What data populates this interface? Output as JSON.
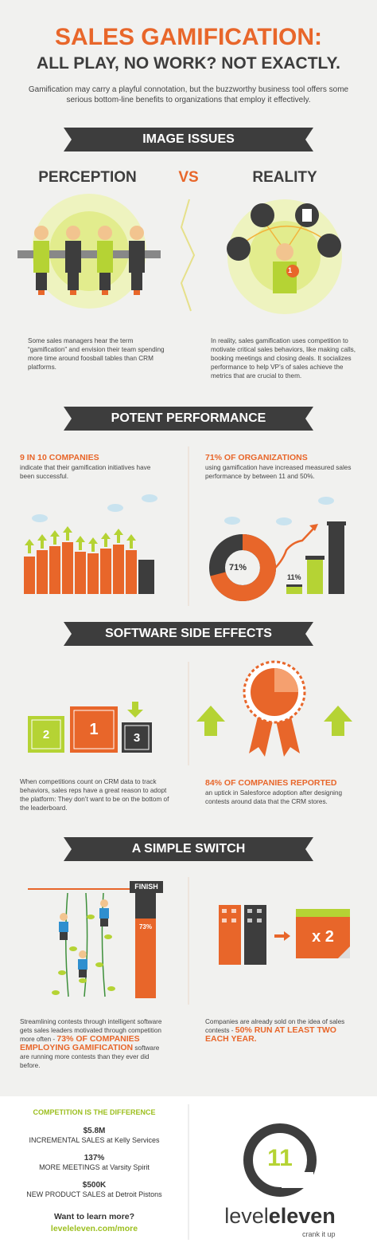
{
  "header": {
    "title": "SALES GAMIFICATION:",
    "subtitle": "ALL PLAY, NO WORK? NOT EXACTLY.",
    "intro": "Gamification may carry a playful connotation, but the buzzworthy business tool offers some serious bottom-line benefits to organizations that employ it effectively."
  },
  "image_issues": {
    "banner": "IMAGE ISSUES",
    "left_heading": "PERCEPTION",
    "vs": "VS",
    "right_heading": "REALITY",
    "left_text": "Some sales managers hear the term “gamification” and envision their team spending more time around foosball tables than CRM platforms.",
    "right_text": "In reality, sales gamification uses competition to motivate critical sales behaviors, like making calls, booking meetings and closing deals. It socializes performance to help VP’s of sales achieve the metrics that are crucial to them.",
    "badge": "1"
  },
  "potent_performance": {
    "banner": "POTENT PERFORMANCE",
    "left_highlight": "9 IN 10 COMPANIES",
    "left_text": "indicate that their gamification initiatives have been successful.",
    "right_highlight": "71% OF ORGANIZATIONS",
    "right_text": "using gamification have increased measured sales performance by between 11 and 50%.",
    "donut_label": "71%",
    "bar_label": "11%"
  },
  "software_side_effects": {
    "banner": "SOFTWARE SIDE EFFECTS",
    "podium": [
      "2",
      "1",
      "3"
    ],
    "left_text": "When competitions count on CRM data to track behaviors, sales reps have a great reason to adopt the platform: They don’t want to be on the bottom of the leaderboard.",
    "right_highlight": "84% OF COMPANIES REPORTED",
    "right_text": "an uptick in Salesforce adoption after designing contests around data that the CRM stores."
  },
  "simple_switch": {
    "banner": "A SIMPLE SWITCH",
    "finish": "FINISH",
    "bar_label": "73%",
    "multiplier": "x 2",
    "left_before": "Streamlining contests through intelligent software gets sales leaders motivated through competition more often - ",
    "left_highlight": "73% OF COMPANIES EMPLOYING GAMIFICATION",
    "left_after": " software are running more contests than they ever did before.",
    "right_before": "Companies are already sold on the idea of sales contests - ",
    "right_highlight": "50% RUN AT LEAST TWO EACH YEAR."
  },
  "footer": {
    "heading": "COMPETITION IS THE DIFFERENCE",
    "stats": [
      {
        "value": "$5.8M",
        "label": "INCREMENTAL SALES at Kelly Services"
      },
      {
        "value": "137%",
        "label": "MORE MEETINGS at Varsity Spirit"
      },
      {
        "value": "$500K",
        "label": "NEW PRODUCT SALES at Detroit Pistons"
      }
    ],
    "cta": "Want to learn more?",
    "link": "leveleleven.com/more",
    "logo_mark": "11",
    "logo_level": "level",
    "logo_eleven": "eleven",
    "tagline": "crank it up"
  }
}
